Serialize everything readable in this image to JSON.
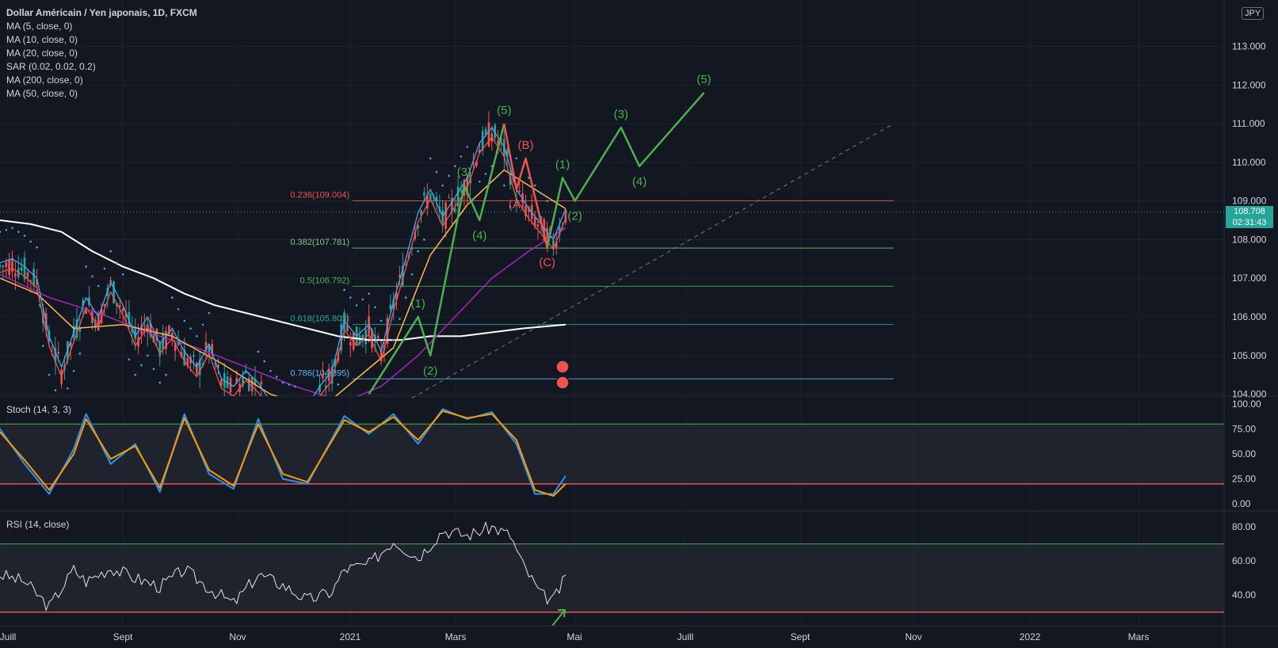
{
  "legend": {
    "title": "Dollar Américain / Yen japonais, 1D, FXCM",
    "indicators": [
      "MA (5, close, 0)",
      "MA (10, close, 0)",
      "MA (20, close, 0)",
      "SAR (0.02, 0.02, 0.2)",
      "MA (200, close, 0)",
      "MA (50, close, 0)"
    ]
  },
  "currency_button": "JPY",
  "current_price": "108.708",
  "countdown": "02:31:43",
  "stoch_label": "Stoch (14, 3, 3)",
  "rsi_label": "RSI (14, close)",
  "colors": {
    "background": "#131722",
    "grid": "#1e222d",
    "up": "#26a69a",
    "down": "#ef5350",
    "wave_green": "#4caf50",
    "wave_red": "#ef5350",
    "ma200": "#ffffff",
    "ma50": "#9c27b0",
    "ma20": "#ffb74d",
    "ma10": "#ef5350",
    "ma5": "#42a5f5",
    "stoch_k": "#2196f3",
    "stoch_d": "#ff9800"
  },
  "chart_data": [
    {
      "type": "candlestick",
      "title": "Dollar Américain / Yen japonais, 1D, FXCM",
      "ylim": [
        103.95,
        114.2
      ],
      "y_ticks": [
        "113.000",
        "112.000",
        "111.000",
        "110.000",
        "109.000",
        "108.000",
        "107.000",
        "106.000",
        "105.000",
        "104.000"
      ],
      "x_ticks": [
        "Juill",
        "Sept",
        "Nov",
        "2021",
        "Mars",
        "Mai",
        "Juill",
        "Sept",
        "Nov",
        "2022",
        "Mars"
      ],
      "fib_levels": [
        {
          "label": "0.236(109.004)",
          "value": 109.004,
          "color": "#ef5350"
        },
        {
          "label": "0.382(107.781)",
          "value": 107.781,
          "color": "#81c784"
        },
        {
          "label": "0.5(106.792)",
          "value": 106.792,
          "color": "#4caf50"
        },
        {
          "label": "0.618(105.803)",
          "value": 105.803,
          "color": "#26a69a"
        },
        {
          "label": "0.786(104.395)",
          "value": 104.395,
          "color": "#64b5f6"
        }
      ],
      "price_path": [
        [
          0,
          107.3
        ],
        [
          4,
          107.4
        ],
        [
          8,
          107.2
        ],
        [
          12,
          106.9
        ],
        [
          16,
          105.4
        ],
        [
          20,
          104.6
        ],
        [
          24,
          105.5
        ],
        [
          28,
          106.4
        ],
        [
          32,
          105.9
        ],
        [
          36,
          106.8
        ],
        [
          40,
          106.2
        ],
        [
          44,
          105.4
        ],
        [
          48,
          105.9
        ],
        [
          52,
          105.2
        ],
        [
          56,
          105.6
        ],
        [
          60,
          105.0
        ],
        [
          64,
          104.6
        ],
        [
          68,
          105.2
        ],
        [
          72,
          104.3
        ],
        [
          76,
          104.1
        ],
        [
          80,
          104.5
        ],
        [
          84,
          104.2
        ],
        [
          88,
          103.7
        ],
        [
          92,
          103.4
        ],
        [
          96,
          103.3
        ],
        [
          100,
          103.6
        ],
        [
          104,
          104.1
        ],
        [
          108,
          104.5
        ],
        [
          112,
          105.8
        ],
        [
          116,
          105.4
        ],
        [
          120,
          105.7
        ],
        [
          124,
          105.0
        ],
        [
          128,
          106.3
        ],
        [
          132,
          107.4
        ],
        [
          136,
          108.6
        ],
        [
          140,
          109.2
        ],
        [
          144,
          108.5
        ],
        [
          148,
          109.0
        ],
        [
          152,
          109.5
        ],
        [
          156,
          110.4
        ],
        [
          160,
          110.8
        ],
        [
          164,
          110.3
        ],
        [
          168,
          109.2
        ],
        [
          172,
          108.7
        ],
        [
          176,
          108.3
        ],
        [
          180,
          107.9
        ],
        [
          184,
          108.7
        ]
      ],
      "ma200": [
        [
          0,
          108.5
        ],
        [
          10,
          108.4
        ],
        [
          20,
          108.2
        ],
        [
          30,
          107.7
        ],
        [
          40,
          107.3
        ],
        [
          50,
          107.0
        ],
        [
          60,
          106.6
        ],
        [
          70,
          106.3
        ],
        [
          80,
          106.1
        ],
        [
          90,
          105.9
        ],
        [
          100,
          105.7
        ],
        [
          110,
          105.5
        ],
        [
          120,
          105.4
        ],
        [
          130,
          105.4
        ],
        [
          140,
          105.5
        ],
        [
          150,
          105.5
        ],
        [
          160,
          105.6
        ],
        [
          170,
          105.7
        ],
        [
          184,
          105.8
        ]
      ],
      "ma50": [
        [
          0,
          107.1
        ],
        [
          16,
          106.5
        ],
        [
          32,
          106.1
        ],
        [
          48,
          105.6
        ],
        [
          64,
          105.2
        ],
        [
          80,
          104.7
        ],
        [
          96,
          104.2
        ],
        [
          112,
          103.8
        ],
        [
          124,
          104.2
        ],
        [
          136,
          105.0
        ],
        [
          148,
          106.0
        ],
        [
          160,
          107.0
        ],
        [
          172,
          107.7
        ],
        [
          184,
          108.3
        ]
      ],
      "ma20": [
        [
          0,
          107.0
        ],
        [
          12,
          106.6
        ],
        [
          24,
          105.7
        ],
        [
          40,
          105.8
        ],
        [
          56,
          105.5
        ],
        [
          72,
          104.8
        ],
        [
          88,
          104.0
        ],
        [
          104,
          103.6
        ],
        [
          116,
          104.4
        ],
        [
          128,
          105.2
        ],
        [
          140,
          107.6
        ],
        [
          152,
          108.9
        ],
        [
          164,
          109.8
        ],
        [
          176,
          109.2
        ],
        [
          184,
          108.8
        ]
      ],
      "elliott_green": [
        {
          "x": 120,
          "y": 104.0
        },
        {
          "x": 136,
          "y": 106.0,
          "label": "(1)"
        },
        {
          "x": 140,
          "y": 105.0,
          "label": "(2)"
        },
        {
          "x": 151,
          "y": 109.4,
          "label": "(3)"
        },
        {
          "x": 156,
          "y": 108.5,
          "label": "(4)"
        },
        {
          "x": 164,
          "y": 111.0,
          "label": "(5)"
        }
      ],
      "elliott_red": [
        {
          "x": 164,
          "y": 111.0
        },
        {
          "x": 168,
          "y": 109.3,
          "label": "(A)"
        },
        {
          "x": 171,
          "y": 110.1,
          "label": "(B)"
        },
        {
          "x": 178,
          "y": 107.8,
          "label": "(C)"
        }
      ],
      "elliott_projection": [
        {
          "x": 178,
          "y": 107.8
        },
        {
          "x": 183,
          "y": 109.6,
          "label": "(1)"
        },
        {
          "x": 187,
          "y": 109.0,
          "label": "(2)"
        },
        {
          "x": 202,
          "y": 110.9,
          "label": "(3)"
        },
        {
          "x": 208,
          "y": 109.9,
          "label": "(4)"
        },
        {
          "x": 229,
          "y": 111.8,
          "label": "(5)"
        }
      ]
    },
    {
      "type": "line",
      "title": "Stoch (14, 3, 3)",
      "ylim": [
        0,
        100
      ],
      "y_ticks": [
        "100.00",
        "75.00",
        "50.00",
        "25.00",
        "0.00"
      ],
      "bands": [
        80,
        20
      ],
      "k": [
        [
          0,
          75
        ],
        [
          8,
          40
        ],
        [
          16,
          10
        ],
        [
          24,
          55
        ],
        [
          28,
          90
        ],
        [
          36,
          40
        ],
        [
          44,
          60
        ],
        [
          52,
          12
        ],
        [
          60,
          90
        ],
        [
          68,
          30
        ],
        [
          76,
          15
        ],
        [
          84,
          85
        ],
        [
          92,
          25
        ],
        [
          100,
          20
        ],
        [
          112,
          88
        ],
        [
          120,
          70
        ],
        [
          128,
          90
        ],
        [
          136,
          60
        ],
        [
          144,
          95
        ],
        [
          152,
          85
        ],
        [
          160,
          92
        ],
        [
          168,
          60
        ],
        [
          174,
          10
        ],
        [
          180,
          10
        ],
        [
          184,
          28
        ]
      ],
      "d": [
        [
          0,
          72
        ],
        [
          8,
          44
        ],
        [
          16,
          14
        ],
        [
          24,
          50
        ],
        [
          28,
          85
        ],
        [
          36,
          45
        ],
        [
          44,
          58
        ],
        [
          52,
          16
        ],
        [
          60,
          86
        ],
        [
          68,
          34
        ],
        [
          76,
          18
        ],
        [
          84,
          80
        ],
        [
          92,
          30
        ],
        [
          100,
          22
        ],
        [
          112,
          84
        ],
        [
          120,
          72
        ],
        [
          128,
          87
        ],
        [
          136,
          64
        ],
        [
          144,
          93
        ],
        [
          152,
          86
        ],
        [
          160,
          90
        ],
        [
          168,
          64
        ],
        [
          174,
          14
        ],
        [
          180,
          8
        ],
        [
          184,
          20
        ]
      ]
    },
    {
      "type": "line",
      "title": "RSI (14, close)",
      "ylim": [
        25,
        87
      ],
      "y_ticks": [
        "80.00",
        "60.00",
        "40.00"
      ],
      "bands": [
        70,
        30
      ],
      "values": [
        [
          0,
          52
        ],
        [
          8,
          48
        ],
        [
          16,
          33
        ],
        [
          24,
          55
        ],
        [
          28,
          48
        ],
        [
          36,
          56
        ],
        [
          44,
          50
        ],
        [
          52,
          45
        ],
        [
          60,
          55
        ],
        [
          68,
          44
        ],
        [
          76,
          35
        ],
        [
          84,
          52
        ],
        [
          92,
          46
        ],
        [
          100,
          37
        ],
        [
          108,
          42
        ],
        [
          112,
          55
        ],
        [
          120,
          58
        ],
        [
          128,
          72
        ],
        [
          136,
          62
        ],
        [
          144,
          78
        ],
        [
          152,
          75
        ],
        [
          160,
          80
        ],
        [
          166,
          75
        ],
        [
          170,
          58
        ],
        [
          176,
          40
        ],
        [
          180,
          37
        ],
        [
          184,
          50
        ]
      ]
    }
  ]
}
